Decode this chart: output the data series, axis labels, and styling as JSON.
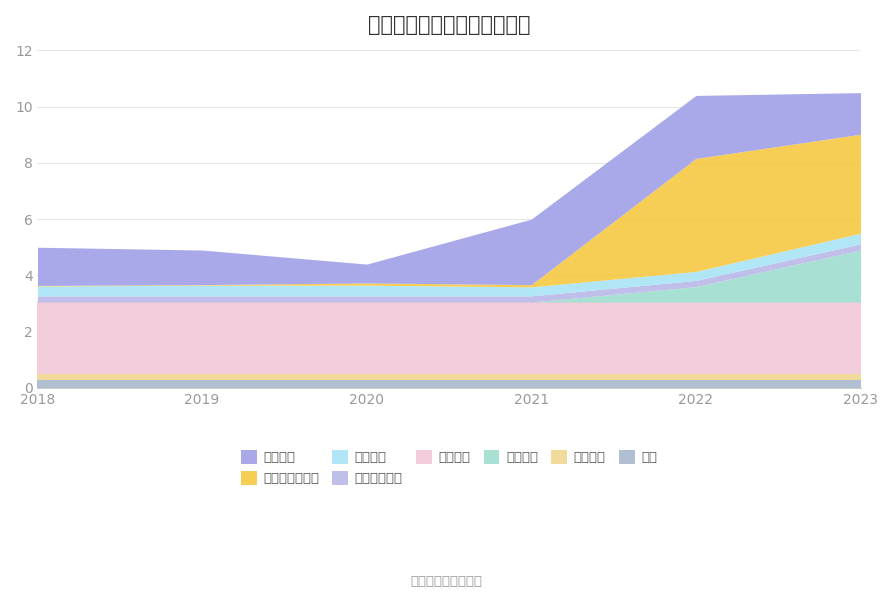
{
  "years": [
    2018,
    2019,
    2020,
    2021,
    2022,
    2023
  ],
  "series": [
    {
      "name": "其它",
      "values": [
        0.28,
        0.28,
        0.28,
        0.28,
        0.28,
        0.28
      ],
      "color": "#a8b8cc"
    },
    {
      "name": "无形资产",
      "values": [
        0.22,
        0.22,
        0.22,
        0.22,
        0.22,
        0.22
      ],
      "color": "#f0d890"
    },
    {
      "name": "固定资产",
      "values": [
        2.55,
        2.55,
        2.55,
        2.55,
        2.55,
        2.55
      ],
      "color": "#f2c8d8"
    },
    {
      "name": "在建工程",
      "values": [
        0.0,
        0.0,
        0.0,
        0.0,
        0.55,
        1.85
      ],
      "color": "#a0ddd0"
    },
    {
      "name": "其他流动资产",
      "values": [
        0.22,
        0.22,
        0.22,
        0.22,
        0.22,
        0.22
      ],
      "color": "#b8b8e8"
    },
    {
      "name": "应收账款",
      "values": [
        0.35,
        0.38,
        0.38,
        0.32,
        0.32,
        0.38
      ],
      "color": "#a8e4f4"
    },
    {
      "name": "交易性金融资产",
      "values": [
        0.02,
        0.02,
        0.08,
        0.08,
        4.02,
        3.52
      ],
      "color": "#f5c842"
    },
    {
      "name": "货币资金",
      "values": [
        1.36,
        1.23,
        0.67,
        2.33,
        2.24,
        1.48
      ],
      "color": "#a0a0e8"
    }
  ],
  "title": "历年主要资产堆积图（亿元）",
  "ylim": [
    0,
    12
  ],
  "yticks": [
    0,
    2,
    4,
    6,
    8,
    10,
    12
  ],
  "background_color": "#ffffff",
  "source_text": "数据来源：恒生聚源",
  "title_fontsize": 15,
  "legend_fontsize": 9.5,
  "legend_order": [
    "货币资金",
    "交易性金融资产",
    "应收账款",
    "其他流动资产",
    "固定资产",
    "在建工程",
    "无形资产",
    "其它"
  ]
}
